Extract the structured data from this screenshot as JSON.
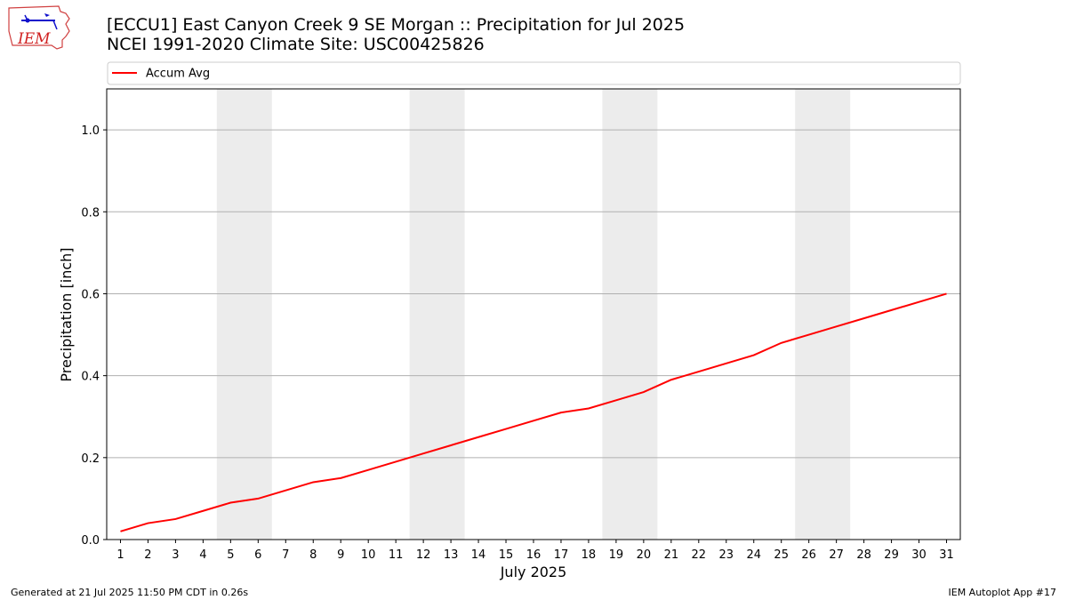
{
  "header": {
    "title_line1": "[ECCU1] East Canyon Creek 9 SE Morgan :: Precipitation for Jul 2025",
    "title_line2": "NCEI 1991-2020 Climate Site: USC00425826"
  },
  "logo": {
    "text": "IEM",
    "icon": "iem-iowa-logo"
  },
  "footer": {
    "left": "Generated at 21 Jul 2025 11:50 PM CDT in 0.26s",
    "right": "IEM Autoplot App #17"
  },
  "chart_data": {
    "type": "line",
    "xlabel": "July 2025",
    "ylabel": "Precipitation [inch]",
    "xlim": [
      0.5,
      31.5
    ],
    "ylim": [
      0,
      1.1
    ],
    "yticks": [
      0.0,
      0.2,
      0.4,
      0.6,
      0.8,
      1.0
    ],
    "ytick_labels": [
      "0.0",
      "0.2",
      "0.4",
      "0.6",
      "0.8",
      "1.0"
    ],
    "x": [
      1,
      2,
      3,
      4,
      5,
      6,
      7,
      8,
      9,
      10,
      11,
      12,
      13,
      14,
      15,
      16,
      17,
      18,
      19,
      20,
      21,
      22,
      23,
      24,
      25,
      26,
      27,
      28,
      29,
      30,
      31
    ],
    "xtick_labels": [
      "1",
      "2",
      "3",
      "4",
      "5",
      "6",
      "7",
      "8",
      "9",
      "10",
      "11",
      "12",
      "13",
      "14",
      "15",
      "16",
      "17",
      "18",
      "19",
      "20",
      "21",
      "22",
      "23",
      "24",
      "25",
      "26",
      "27",
      "28",
      "29",
      "30",
      "31"
    ],
    "grid": "horizontal",
    "legend_position": "top, above plot",
    "weekend_shading": [
      [
        4.5,
        6.5
      ],
      [
        11.5,
        13.5
      ],
      [
        18.5,
        20.5
      ],
      [
        25.5,
        27.5
      ]
    ],
    "weekend_color": "#ececec",
    "series": [
      {
        "name": "Accum Avg",
        "color": "#ff0000",
        "values": [
          0.02,
          0.04,
          0.05,
          0.07,
          0.09,
          0.1,
          0.12,
          0.14,
          0.15,
          0.17,
          0.19,
          0.21,
          0.23,
          0.25,
          0.27,
          0.29,
          0.31,
          0.32,
          0.34,
          0.36,
          0.39,
          0.41,
          0.43,
          0.45,
          0.48,
          0.5,
          0.52,
          0.54,
          0.56,
          0.58,
          0.6
        ]
      }
    ]
  }
}
